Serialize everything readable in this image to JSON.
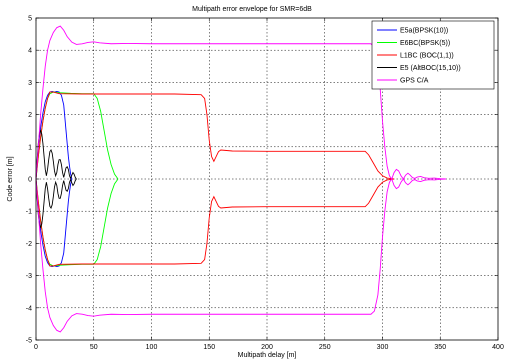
{
  "chart_data": {
    "type": "line",
    "title": "Multipath error envelope for SMR=6dB",
    "xlabel": "Multipath delay [m]",
    "ylabel": "Code error [m]",
    "xlim": [
      0,
      400
    ],
    "ylim": [
      -5,
      5
    ],
    "xticks": [
      0,
      50,
      100,
      150,
      200,
      250,
      300,
      350,
      400
    ],
    "yticks": [
      5,
      4,
      3,
      2,
      1,
      0,
      -1,
      -2,
      -3,
      -4,
      -5
    ],
    "grid": true,
    "legend_position": "top-right",
    "series": [
      {
        "name": "E5a(BPSK(10))",
        "color": "#0000ff",
        "upper": [
          [
            0,
            0
          ],
          [
            1,
            0.5
          ],
          [
            2,
            1.0
          ],
          [
            4,
            1.6
          ],
          [
            6,
            2.05
          ],
          [
            8,
            2.4
          ],
          [
            10,
            2.6
          ],
          [
            12,
            2.7
          ],
          [
            14,
            2.72
          ],
          [
            16,
            2.7
          ],
          [
            18,
            2.72
          ],
          [
            20,
            2.7
          ],
          [
            22,
            2.6
          ],
          [
            24,
            2.3
          ],
          [
            25,
            1.9
          ],
          [
            26,
            1.5
          ],
          [
            27,
            1.1
          ],
          [
            28,
            0.7
          ],
          [
            29,
            0.4
          ],
          [
            30,
            0.15
          ],
          [
            31,
            0
          ]
        ],
        "lower": [
          [
            0,
            0
          ],
          [
            1,
            -0.5
          ],
          [
            2,
            -1.0
          ],
          [
            4,
            -1.6
          ],
          [
            6,
            -2.05
          ],
          [
            8,
            -2.4
          ],
          [
            10,
            -2.6
          ],
          [
            12,
            -2.7
          ],
          [
            14,
            -2.72
          ],
          [
            16,
            -2.7
          ],
          [
            18,
            -2.72
          ],
          [
            20,
            -2.7
          ],
          [
            22,
            -2.6
          ],
          [
            24,
            -2.3
          ],
          [
            25,
            -1.9
          ],
          [
            26,
            -1.5
          ],
          [
            27,
            -1.1
          ],
          [
            28,
            -0.7
          ],
          [
            29,
            -0.4
          ],
          [
            30,
            -0.15
          ],
          [
            31,
            0
          ]
        ]
      },
      {
        "name": "E6BC(BPSK(5))",
        "color": "#00ff00",
        "upper": [
          [
            0,
            0
          ],
          [
            2,
            0.7
          ],
          [
            4,
            1.3
          ],
          [
            6,
            1.8
          ],
          [
            8,
            2.2
          ],
          [
            10,
            2.5
          ],
          [
            12,
            2.65
          ],
          [
            15,
            2.7
          ],
          [
            20,
            2.68
          ],
          [
            30,
            2.66
          ],
          [
            40,
            2.65
          ],
          [
            50,
            2.65
          ],
          [
            53,
            2.5
          ],
          [
            56,
            2.1
          ],
          [
            59,
            1.5
          ],
          [
            62,
            0.9
          ],
          [
            65,
            0.45
          ],
          [
            68,
            0.15
          ],
          [
            70,
            0.05
          ],
          [
            71,
            0
          ]
        ],
        "lower": [
          [
            0,
            0
          ],
          [
            2,
            -0.7
          ],
          [
            4,
            -1.3
          ],
          [
            6,
            -1.8
          ],
          [
            8,
            -2.2
          ],
          [
            10,
            -2.5
          ],
          [
            12,
            -2.65
          ],
          [
            15,
            -2.7
          ],
          [
            20,
            -2.68
          ],
          [
            30,
            -2.66
          ],
          [
            40,
            -2.65
          ],
          [
            50,
            -2.65
          ],
          [
            53,
            -2.5
          ],
          [
            56,
            -2.1
          ],
          [
            59,
            -1.5
          ],
          [
            62,
            -0.9
          ],
          [
            65,
            -0.45
          ],
          [
            68,
            -0.15
          ],
          [
            70,
            -0.05
          ],
          [
            71,
            0
          ]
        ]
      },
      {
        "name": "L1BC (BOC(1,1))",
        "color": "#ff0000",
        "upper": [
          [
            0,
            0
          ],
          [
            2,
            0.7
          ],
          [
            4,
            1.3
          ],
          [
            6,
            1.8
          ],
          [
            8,
            2.2
          ],
          [
            10,
            2.5
          ],
          [
            12,
            2.7
          ],
          [
            15,
            2.7
          ],
          [
            20,
            2.65
          ],
          [
            40,
            2.64
          ],
          [
            80,
            2.64
          ],
          [
            120,
            2.64
          ],
          [
            143,
            2.62
          ],
          [
            146,
            2.5
          ],
          [
            148,
            2.0
          ],
          [
            150,
            1.2
          ],
          [
            152,
            0.7
          ],
          [
            154,
            0.55
          ],
          [
            156,
            0.7
          ],
          [
            158,
            0.85
          ],
          [
            160,
            0.9
          ],
          [
            170,
            0.87
          ],
          [
            200,
            0.86
          ],
          [
            250,
            0.86
          ],
          [
            285,
            0.86
          ],
          [
            288,
            0.75
          ],
          [
            292,
            0.5
          ],
          [
            296,
            0.25
          ],
          [
            300,
            0.1
          ],
          [
            304,
            0.03
          ],
          [
            310,
            0
          ]
        ],
        "lower": [
          [
            0,
            0
          ],
          [
            2,
            -0.7
          ],
          [
            4,
            -1.3
          ],
          [
            6,
            -1.8
          ],
          [
            8,
            -2.2
          ],
          [
            10,
            -2.5
          ],
          [
            12,
            -2.7
          ],
          [
            15,
            -2.7
          ],
          [
            20,
            -2.65
          ],
          [
            40,
            -2.64
          ],
          [
            80,
            -2.64
          ],
          [
            120,
            -2.64
          ],
          [
            143,
            -2.62
          ],
          [
            146,
            -2.5
          ],
          [
            148,
            -2.0
          ],
          [
            150,
            -1.2
          ],
          [
            152,
            -0.7
          ],
          [
            154,
            -0.55
          ],
          [
            156,
            -0.7
          ],
          [
            158,
            -0.85
          ],
          [
            160,
            -0.9
          ],
          [
            170,
            -0.87
          ],
          [
            200,
            -0.86
          ],
          [
            250,
            -0.86
          ],
          [
            285,
            -0.86
          ],
          [
            288,
            -0.75
          ],
          [
            292,
            -0.5
          ],
          [
            296,
            -0.25
          ],
          [
            300,
            -0.1
          ],
          [
            304,
            -0.03
          ],
          [
            310,
            0
          ]
        ]
      },
      {
        "name": "E5 (AltBOC(15,10))",
        "color": "#000000",
        "upper": [
          [
            0,
            0
          ],
          [
            1,
            0.6
          ],
          [
            2,
            1.1
          ],
          [
            3,
            1.4
          ],
          [
            4,
            1.5
          ],
          [
            5,
            1.4
          ],
          [
            6,
            1.1
          ],
          [
            7,
            0.7
          ],
          [
            8,
            0.3
          ],
          [
            9,
            0.1
          ],
          [
            10,
            0.3
          ],
          [
            11,
            0.6
          ],
          [
            12,
            0.85
          ],
          [
            13,
            0.9
          ],
          [
            14,
            0.8
          ],
          [
            15,
            0.55
          ],
          [
            16,
            0.25
          ],
          [
            17,
            0.1
          ],
          [
            18,
            0.2
          ],
          [
            19,
            0.45
          ],
          [
            20,
            0.6
          ],
          [
            21,
            0.6
          ],
          [
            22,
            0.45
          ],
          [
            23,
            0.2
          ],
          [
            24,
            0.05
          ],
          [
            25,
            0.2
          ],
          [
            26,
            0.35
          ],
          [
            27,
            0.38
          ],
          [
            28,
            0.3
          ],
          [
            29,
            0.1
          ],
          [
            30,
            0.02
          ],
          [
            31,
            0.12
          ],
          [
            32,
            0.2
          ],
          [
            33,
            0.15
          ],
          [
            34,
            0.05
          ],
          [
            35,
            0
          ]
        ],
        "lower": [
          [
            0,
            0
          ],
          [
            1,
            -0.6
          ],
          [
            2,
            -1.1
          ],
          [
            3,
            -1.4
          ],
          [
            4,
            -1.5
          ],
          [
            5,
            -1.4
          ],
          [
            6,
            -1.1
          ],
          [
            7,
            -0.7
          ],
          [
            8,
            -0.3
          ],
          [
            9,
            -0.1
          ],
          [
            10,
            -0.3
          ],
          [
            11,
            -0.6
          ],
          [
            12,
            -0.85
          ],
          [
            13,
            -0.9
          ],
          [
            14,
            -0.8
          ],
          [
            15,
            -0.55
          ],
          [
            16,
            -0.25
          ],
          [
            17,
            -0.1
          ],
          [
            18,
            -0.2
          ],
          [
            19,
            -0.45
          ],
          [
            20,
            -0.6
          ],
          [
            21,
            -0.6
          ],
          [
            22,
            -0.45
          ],
          [
            23,
            -0.2
          ],
          [
            24,
            -0.05
          ],
          [
            25,
            -0.2
          ],
          [
            26,
            -0.35
          ],
          [
            27,
            -0.38
          ],
          [
            28,
            -0.3
          ],
          [
            29,
            -0.1
          ],
          [
            30,
            -0.02
          ],
          [
            31,
            -0.12
          ],
          [
            32,
            -0.2
          ],
          [
            33,
            -0.15
          ],
          [
            34,
            -0.05
          ],
          [
            35,
            0
          ]
        ]
      },
      {
        "name": "GPS C/A",
        "color": "#ff00ff",
        "upper": [
          [
            0,
            0
          ],
          [
            2,
            1.0
          ],
          [
            4,
            2.0
          ],
          [
            6,
            2.8
          ],
          [
            8,
            3.5
          ],
          [
            10,
            4.0
          ],
          [
            12,
            4.3
          ],
          [
            15,
            4.55
          ],
          [
            18,
            4.7
          ],
          [
            21,
            4.75
          ],
          [
            24,
            4.62
          ],
          [
            27,
            4.42
          ],
          [
            31,
            4.25
          ],
          [
            35,
            4.18
          ],
          [
            40,
            4.2
          ],
          [
            45,
            4.24
          ],
          [
            50,
            4.26
          ],
          [
            55,
            4.23
          ],
          [
            65,
            4.2
          ],
          [
            80,
            4.21
          ],
          [
            100,
            4.2
          ],
          [
            150,
            4.2
          ],
          [
            200,
            4.2
          ],
          [
            250,
            4.2
          ],
          [
            290,
            4.2
          ],
          [
            293,
            4.1
          ],
          [
            296,
            3.6
          ],
          [
            298,
            2.8
          ],
          [
            300,
            1.8
          ],
          [
            302,
            1.0
          ],
          [
            304,
            0.4
          ],
          [
            306,
            0.1
          ],
          [
            308,
            0
          ],
          [
            310,
            0.2
          ],
          [
            312,
            0.3
          ],
          [
            314,
            0.25
          ],
          [
            316,
            0.1
          ],
          [
            318,
            0
          ],
          [
            320,
            0.12
          ],
          [
            322,
            0.18
          ],
          [
            324,
            0.12
          ],
          [
            326,
            0.04
          ],
          [
            328,
            0.02
          ],
          [
            330,
            0.06
          ],
          [
            333,
            0.08
          ],
          [
            336,
            0.04
          ],
          [
            340,
            0.02
          ],
          [
            345,
            0.03
          ],
          [
            350,
            0.01
          ],
          [
            355,
            0
          ]
        ],
        "lower": [
          [
            0,
            0
          ],
          [
            2,
            -1.0
          ],
          [
            4,
            -2.0
          ],
          [
            6,
            -2.8
          ],
          [
            8,
            -3.5
          ],
          [
            10,
            -4.0
          ],
          [
            12,
            -4.3
          ],
          [
            15,
            -4.55
          ],
          [
            18,
            -4.7
          ],
          [
            21,
            -4.75
          ],
          [
            24,
            -4.62
          ],
          [
            27,
            -4.42
          ],
          [
            31,
            -4.25
          ],
          [
            35,
            -4.18
          ],
          [
            40,
            -4.2
          ],
          [
            45,
            -4.24
          ],
          [
            50,
            -4.26
          ],
          [
            55,
            -4.23
          ],
          [
            65,
            -4.2
          ],
          [
            80,
            -4.21
          ],
          [
            100,
            -4.2
          ],
          [
            150,
            -4.2
          ],
          [
            200,
            -4.2
          ],
          [
            250,
            -4.2
          ],
          [
            290,
            -4.2
          ],
          [
            293,
            -4.1
          ],
          [
            296,
            -3.6
          ],
          [
            298,
            -2.8
          ],
          [
            300,
            -1.8
          ],
          [
            302,
            -1.0
          ],
          [
            304,
            -0.4
          ],
          [
            306,
            -0.1
          ],
          [
            308,
            0
          ],
          [
            310,
            -0.2
          ],
          [
            312,
            -0.3
          ],
          [
            314,
            -0.25
          ],
          [
            316,
            -0.1
          ],
          [
            318,
            0
          ],
          [
            320,
            -0.12
          ],
          [
            322,
            -0.18
          ],
          [
            324,
            -0.12
          ],
          [
            326,
            -0.04
          ],
          [
            328,
            -0.02
          ],
          [
            330,
            -0.06
          ],
          [
            333,
            -0.08
          ],
          [
            336,
            -0.04
          ],
          [
            340,
            -0.02
          ],
          [
            345,
            -0.03
          ],
          [
            350,
            -0.01
          ],
          [
            355,
            0
          ]
        ]
      }
    ]
  }
}
